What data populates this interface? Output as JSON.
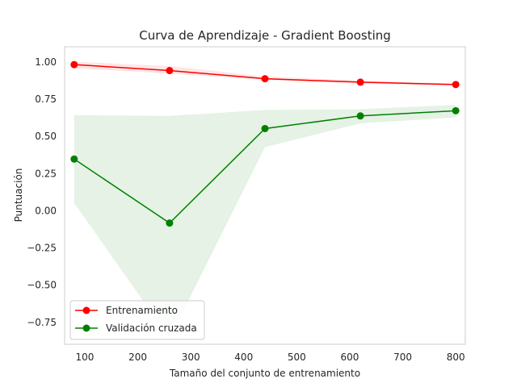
{
  "chart_data": {
    "type": "line",
    "title": "Curva de Aprendizaje - Gradient Boosting",
    "xlabel": "Tamaño del conjunto de entrenamiento",
    "ylabel": "Puntuación",
    "xlim": [
      62,
      818
    ],
    "ylim": [
      -0.9,
      1.1
    ],
    "xticks": [
      100,
      200,
      300,
      400,
      500,
      600,
      700,
      800
    ],
    "yticks": [
      -0.75,
      -0.5,
      -0.25,
      0.0,
      0.25,
      0.5,
      0.75,
      1.0
    ],
    "ytick_labels": [
      "−0.75",
      "−0.50",
      "−0.25",
      "0.00",
      "0.25",
      "0.50",
      "0.75",
      "1.00"
    ],
    "grid": false,
    "legend_position": "lower-left",
    "x": [
      80,
      260,
      440,
      620,
      800
    ],
    "series": [
      {
        "name": "Entrenamiento",
        "color": "#ff0000",
        "band_color": "#ff0000",
        "values": [
          0.98,
          0.94,
          0.885,
          0.862,
          0.846
        ],
        "band_upper": [
          1.0,
          0.97,
          0.9,
          0.873,
          0.853
        ],
        "band_lower": [
          0.955,
          0.92,
          0.877,
          0.853,
          0.838
        ]
      },
      {
        "name": "Validación cruzada",
        "color": "#008000",
        "band_color": "#008000",
        "values": [
          0.345,
          -0.085,
          0.55,
          0.635,
          0.67
        ],
        "band_upper": [
          0.64,
          0.635,
          0.675,
          0.68,
          0.71
        ],
        "band_lower": [
          0.05,
          -0.86,
          0.425,
          0.585,
          0.625
        ]
      }
    ]
  }
}
